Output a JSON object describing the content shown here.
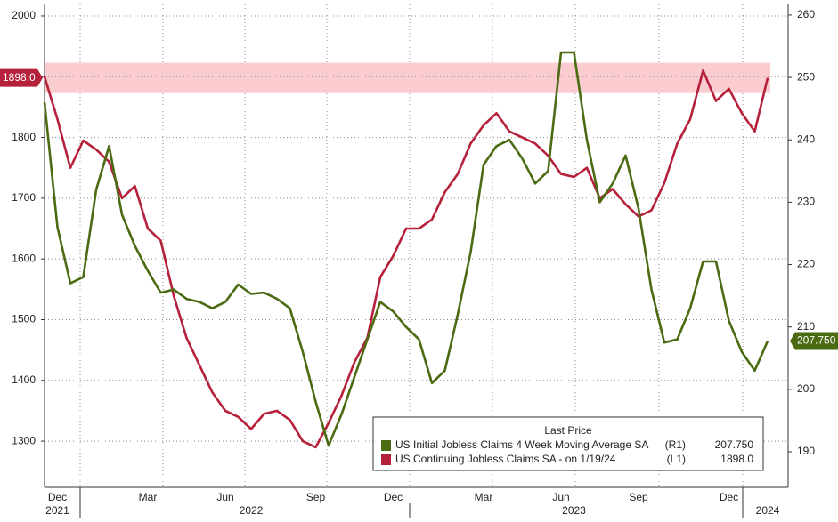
{
  "chart_data": {
    "type": "line",
    "categories": [
      null,
      "Dec",
      null,
      null,
      null,
      null,
      null,
      null,
      "Mar",
      null,
      null,
      null,
      null,
      null,
      "Jun",
      null,
      null,
      null,
      null,
      null,
      null,
      "Sep",
      null,
      null,
      null,
      null,
      null,
      "Dec",
      null,
      null,
      null,
      null,
      null,
      null,
      "Mar",
      null,
      null,
      null,
      null,
      null,
      "Jun",
      null,
      null,
      null,
      null,
      null,
      "Sep",
      null,
      null,
      null,
      null,
      null,
      null,
      "Dec",
      null,
      null,
      null
    ],
    "years": [
      null,
      "2021",
      null,
      null,
      null,
      null,
      null,
      null,
      null,
      null,
      null,
      null,
      null,
      null,
      null,
      null,
      "2022",
      null,
      null,
      null,
      null,
      null,
      null,
      null,
      null,
      null,
      null,
      null,
      null,
      null,
      null,
      null,
      null,
      null,
      null,
      null,
      null,
      null,
      null,
      null,
      null,
      "2023",
      null,
      null,
      null,
      null,
      null,
      null,
      null,
      null,
      null,
      null,
      null,
      null,
      null,
      null,
      "2024"
    ],
    "series": [
      {
        "name": "US Initial Jobless Claims 4 Week Moving Average SA",
        "axis": "y2",
        "axis_label": "(R1)",
        "color": "#4a6b12",
        "values": [
          246,
          226,
          217,
          218,
          232,
          239,
          228,
          223,
          219,
          215.5,
          216,
          214.5,
          214,
          213,
          214,
          216.8,
          215.3,
          215.5,
          214.5,
          213,
          206,
          198,
          191,
          196,
          202,
          208,
          214,
          212.5,
          210,
          208,
          201,
          203,
          212,
          222,
          236,
          239,
          240,
          237,
          233,
          235,
          254,
          254,
          240,
          230,
          233,
          237.5,
          229,
          216,
          207.5,
          208,
          213,
          220.5,
          220.5,
          211,
          206,
          203,
          207.75
        ],
        "last_label": "207.750"
      },
      {
        "name": "US Continuing Jobless Claims SA -  on 1/19/24",
        "axis": "y",
        "axis_label": "(L1)",
        "color": "#b5213b",
        "values": [
          1900,
          1830,
          1750,
          1795,
          1780,
          1760,
          1700,
          1720,
          1650,
          1630,
          1540,
          1470,
          1425,
          1380,
          1350,
          1340,
          1320,
          1345,
          1350,
          1335,
          1300,
          1290,
          1330,
          1375,
          1430,
          1470,
          1570,
          1605,
          1650,
          1650,
          1665,
          1710,
          1740,
          1790,
          1820,
          1840,
          1810,
          1800,
          1790,
          1770,
          1740,
          1735,
          1750,
          1700,
          1715,
          1690,
          1670,
          1680,
          1725,
          1790,
          1830,
          1910,
          1860,
          1880,
          1840,
          1810,
          1898
        ],
        "last_label": "1898.0"
      }
    ],
    "legend_title": "Last Price",
    "ylim": [
      1224,
      2019
    ],
    "yticks": [
      1300,
      1400,
      1500,
      1600,
      1700,
      1800,
      1900,
      2000
    ],
    "y2lim": [
      184.3,
      261.7
    ],
    "y2ticks": [
      190,
      200,
      210,
      220,
      230,
      240,
      250,
      260
    ],
    "grid": true
  }
}
